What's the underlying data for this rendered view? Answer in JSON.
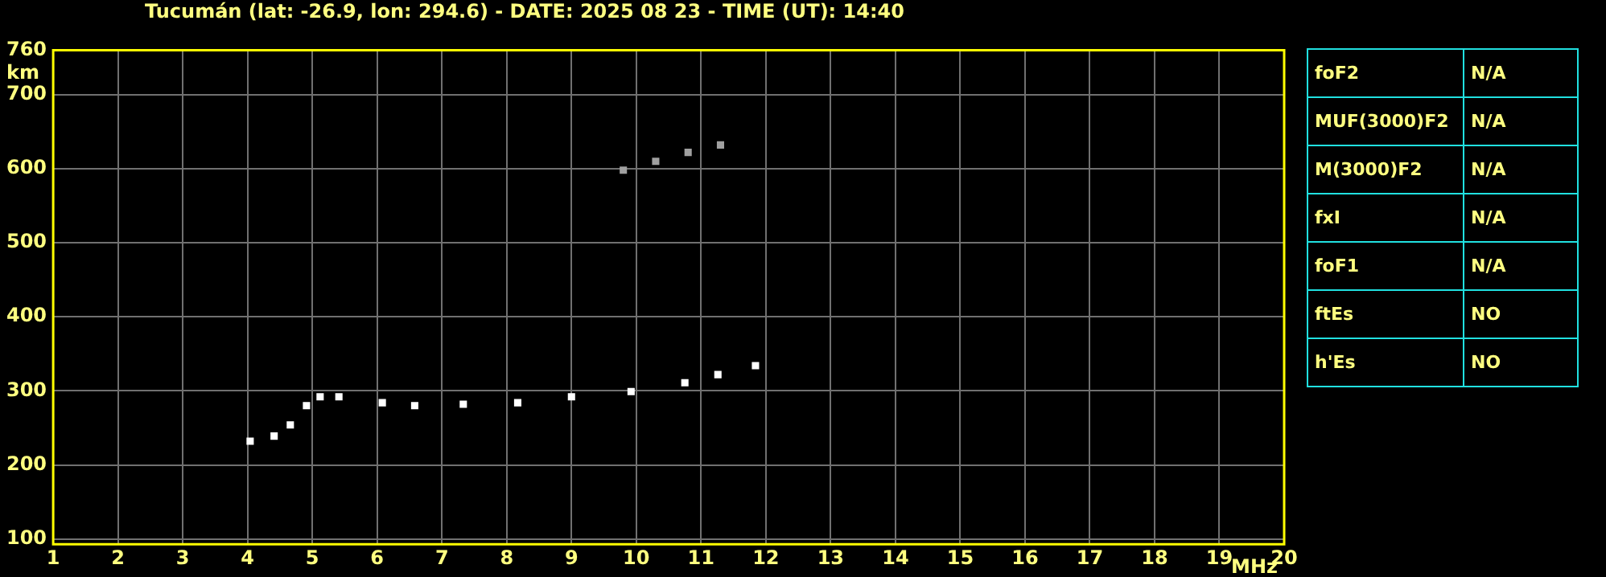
{
  "chart_data": [
    {
      "type": "scatter",
      "title": "Tucumán (lat: -26.9, lon: 294.6) - DATE: 2025 08 23 - TIME (UT): 14:40",
      "xlabel": "MHz",
      "ylabel": "km",
      "xlim": [
        1,
        20
      ],
      "ylim": [
        93,
        760
      ],
      "xticks": [
        1,
        2,
        3,
        4,
        5,
        6,
        7,
        8,
        9,
        10,
        11,
        12,
        13,
        14,
        15,
        16,
        17,
        18,
        19,
        20
      ],
      "yticks": [
        100,
        200,
        300,
        400,
        500,
        600,
        700,
        760
      ],
      "grid": true,
      "marker": "square",
      "series": [
        {
          "color": "#ffffff",
          "x": [
            4.04,
            4.41,
            4.66,
            4.91,
            5.12,
            5.41,
            6.08,
            6.58,
            7.33,
            8.17,
            9.0,
            9.92,
            10.75,
            11.26,
            11.84
          ],
          "values": [
            232,
            239,
            254,
            280,
            292,
            292,
            284,
            280,
            282,
            284,
            292,
            299,
            311,
            322,
            334
          ]
        },
        {
          "color": "#a0a0a0",
          "x": [
            9.8,
            10.3,
            10.8,
            11.3
          ],
          "values": [
            598,
            610,
            622,
            632
          ]
        }
      ]
    },
    {
      "type": "other",
      "annotations": [
        "foF2",
        "N/A",
        "MUF(3000)F2",
        "N/A",
        "M(3000)F2",
        "N/A",
        "fxI",
        "N/A",
        "foF1",
        "N/A",
        "ftEs",
        "NO",
        "h'Es",
        "NO"
      ]
    }
  ]
}
